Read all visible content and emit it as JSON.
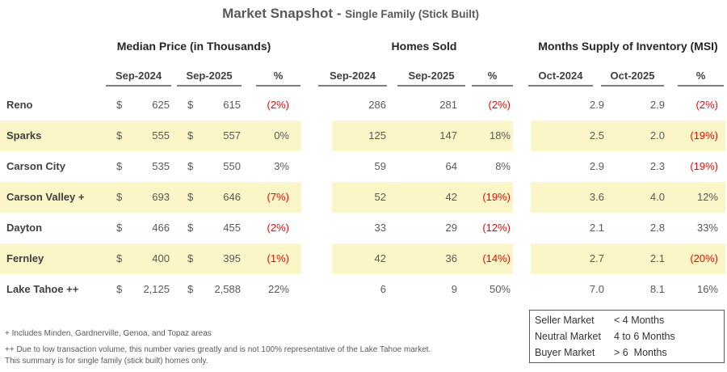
{
  "title": {
    "main": "Market Snapshot",
    "separator": " - ",
    "sub": "Single Family (Stick Built)"
  },
  "currency_symbol": "$",
  "sections": [
    {
      "label": "Median Price (in Thousands)",
      "columns": [
        "Sep-2024",
        "Sep-2025",
        "%"
      ]
    },
    {
      "label": "Homes Sold",
      "columns": [
        "Sep-2024",
        "Sep-2025",
        "%"
      ]
    },
    {
      "label": "Months Supply of Inventory (MSI)",
      "columns": [
        "Oct-2024",
        "Oct-2025",
        "%"
      ]
    }
  ],
  "rows": [
    {
      "name": "Reno",
      "mp_2024": "625",
      "mp_2025": "615",
      "mp_pct": "(2%)",
      "hs_2024": "286",
      "hs_2025": "281",
      "hs_pct": "(2%)",
      "msi_2024": "2.9",
      "msi_2025": "2.9",
      "msi_pct": "(2%)"
    },
    {
      "name": "Sparks",
      "mp_2024": "555",
      "mp_2025": "557",
      "mp_pct": "0%",
      "hs_2024": "125",
      "hs_2025": "147",
      "hs_pct": "18%",
      "msi_2024": "2.5",
      "msi_2025": "2.0",
      "msi_pct": "(19%)"
    },
    {
      "name": "Carson City",
      "mp_2024": "535",
      "mp_2025": "550",
      "mp_pct": "3%",
      "hs_2024": "59",
      "hs_2025": "64",
      "hs_pct": "8%",
      "msi_2024": "2.9",
      "msi_2025": "2.3",
      "msi_pct": "(19%)"
    },
    {
      "name": "Carson Valley +",
      "mp_2024": "693",
      "mp_2025": "646",
      "mp_pct": "(7%)",
      "hs_2024": "52",
      "hs_2025": "42",
      "hs_pct": "(19%)",
      "msi_2024": "3.6",
      "msi_2025": "4.0",
      "msi_pct": "12%"
    },
    {
      "name": "Dayton",
      "mp_2024": "466",
      "mp_2025": "455",
      "mp_pct": "(2%)",
      "hs_2024": "33",
      "hs_2025": "29",
      "hs_pct": "(12%)",
      "msi_2024": "2.1",
      "msi_2025": "2.8",
      "msi_pct": "33%"
    },
    {
      "name": "Fernley",
      "mp_2024": "400",
      "mp_2025": "395",
      "mp_pct": "(1%)",
      "hs_2024": "42",
      "hs_2025": "36",
      "hs_pct": "(14%)",
      "msi_2024": "2.7",
      "msi_2025": "2.1",
      "msi_pct": "(20%)"
    },
    {
      "name": "Lake Tahoe ++",
      "mp_2024": "2,125",
      "mp_2025": "2,588",
      "mp_pct": "22%",
      "hs_2024": "6",
      "hs_2025": "9",
      "hs_pct": "50%",
      "msi_2024": "7.0",
      "msi_2025": "8.1",
      "msi_pct": "16%"
    }
  ],
  "footnotes": {
    "line1": "+ Includes Minden, Gardnerville, Genoa, and Topaz areas",
    "line2": "++ Due to low transaction volume, this number varies greatly and is not 100% representative of the Lake Tahoe market.",
    "line3": "This summary is for single family (stick built) homes only."
  },
  "legend": {
    "seller_label": "Seller Market",
    "seller_value": "< 4 Months",
    "neutral_label": "Neutral Market",
    "neutral_value": "4 to 6 Months",
    "buyer_label": "Buyer Market",
    "buyer_value": "> 6  Months"
  },
  "colors": {
    "row_highlight": "#FAF6C8",
    "negative_percent": "#FF0000",
    "text_gray": "#595959"
  }
}
